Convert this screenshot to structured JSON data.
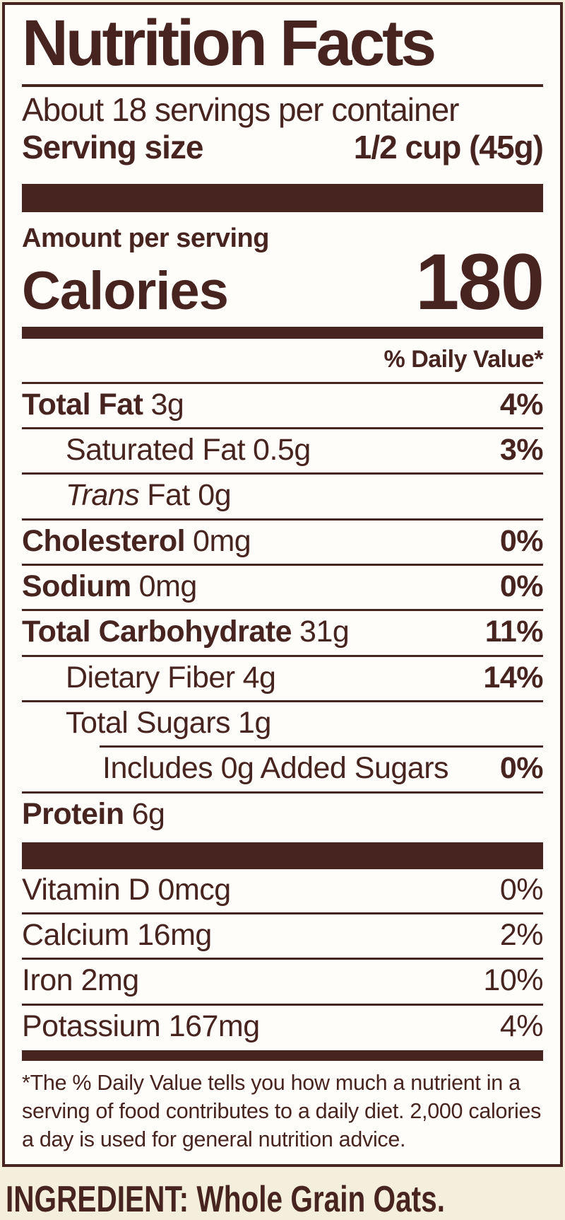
{
  "label": {
    "title": "Nutrition Facts",
    "servings_per_container": "About 18 servings per container",
    "serving_size_label": "Serving size",
    "serving_size_value": "1/2 cup (45g)",
    "amount_per_serving": "Amount per serving",
    "calories_label": "Calories",
    "calories_value": "180",
    "daily_value_header": "% Daily Value*",
    "rows": [
      {
        "label": "Total Fat",
        "amount": "3g",
        "dv": "4%"
      },
      {
        "label": "Saturated Fat",
        "amount": "0.5g",
        "dv": "3%"
      },
      {
        "label": "Trans",
        "amount": "Fat 0g",
        "dv": ""
      },
      {
        "label": "Cholesterol",
        "amount": "0mg",
        "dv": "0%"
      },
      {
        "label": "Sodium",
        "amount": "0mg",
        "dv": "0%"
      },
      {
        "label": "Total Carbohydrate",
        "amount": "31g",
        "dv": "11%"
      },
      {
        "label": "Dietary Fiber",
        "amount": "4g",
        "dv": "14%"
      },
      {
        "label": "Total Sugars",
        "amount": "1g",
        "dv": ""
      },
      {
        "label": "Includes 0g Added Sugars",
        "amount": "",
        "dv": "0%"
      },
      {
        "label": "Protein",
        "amount": "6g",
        "dv": ""
      }
    ],
    "micronutrients": [
      {
        "label": "Vitamin D 0mcg",
        "dv": "0%"
      },
      {
        "label": "Calcium 16mg",
        "dv": "2%"
      },
      {
        "label": "Iron 2mg",
        "dv": "10%"
      },
      {
        "label": "Potassium 167mg",
        "dv": "4%"
      }
    ],
    "footnote": "*The % Daily Value tells you how much a nutrient in a serving of food contributes to a daily diet. 2,000 calories a day is used for general nutrition advice."
  },
  "ingredient_line": "INGREDIENT: Whole Grain Oats.",
  "colors": {
    "ink": "#472420",
    "page_background": "#f4eedc",
    "label_background": "#fefdf9"
  }
}
